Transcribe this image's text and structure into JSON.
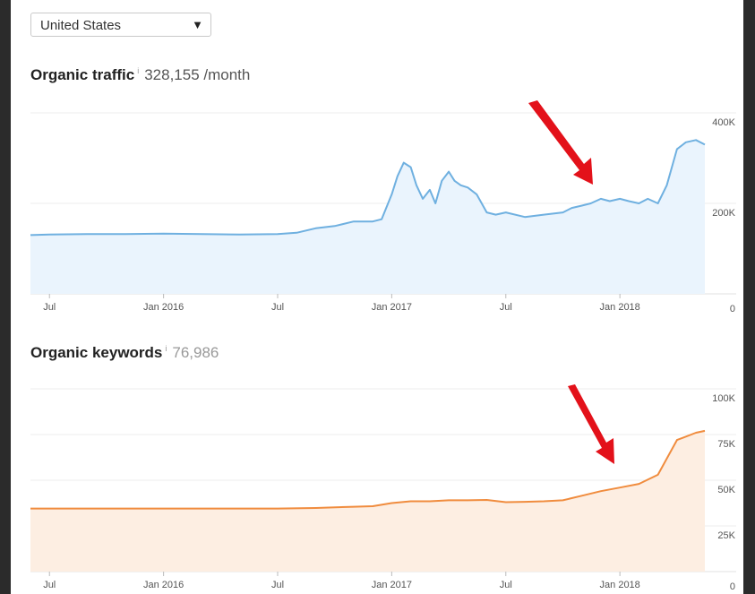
{
  "country_selector": {
    "value": "United States",
    "caret": "▼"
  },
  "traffic_section": {
    "title": "Organic traffic",
    "info": "i",
    "value": "328,155 /month"
  },
  "keywords_section": {
    "title": "Organic keywords",
    "info": "i",
    "value": "76,986"
  },
  "x_ticks": [
    "Jul",
    "Jan 2016",
    "Jul",
    "Jan 2017",
    "Jul",
    "Jan 2018"
  ],
  "colors": {
    "traffic_line": "#6fb0e0",
    "traffic_fill": "#eaf4fd",
    "keywords_line": "#f08c3e",
    "keywords_fill": "#fdeee2",
    "annotation_arrow": "#e3111a"
  },
  "chart_data": [
    {
      "type": "area",
      "title": "Organic traffic",
      "xlabel": "",
      "ylabel": "",
      "ylim": [
        0,
        400000
      ],
      "y_ticks": [
        "400K",
        "200K",
        "0"
      ],
      "x": [
        "2015-06",
        "2015-07",
        "2015-09",
        "2015-11",
        "2016-01",
        "2016-03",
        "2016-05",
        "2016-07",
        "2016-08",
        "2016-09",
        "2016-10",
        "2016-11",
        "2016-12",
        "2016-12-15",
        "2017-01",
        "2017-01-10",
        "2017-01-20",
        "2017-02",
        "2017-02-10",
        "2017-02-20",
        "2017-03",
        "2017-03-10",
        "2017-03-20",
        "2017-04",
        "2017-04-10",
        "2017-04-20",
        "2017-05",
        "2017-05-15",
        "2017-06",
        "2017-06-15",
        "2017-07",
        "2017-08",
        "2017-09",
        "2017-10",
        "2017-10-15",
        "2017-11",
        "2017-11-15",
        "2017-12",
        "2017-12-15",
        "2018-01",
        "2018-01-15",
        "2018-02",
        "2018-02-15",
        "2018-03",
        "2018-03-15",
        "2018-04",
        "2018-04-15",
        "2018-05",
        "2018-05-15"
      ],
      "series": [
        {
          "values": [
            130000,
            131000,
            132000,
            132000,
            133000,
            132000,
            131000,
            132000,
            135000,
            145000,
            150000,
            160000,
            160000,
            165000,
            220000,
            260000,
            290000,
            280000,
            240000,
            210000,
            230000,
            200000,
            250000,
            270000,
            250000,
            240000,
            235000,
            220000,
            180000,
            175000,
            180000,
            170000,
            175000,
            180000,
            190000,
            195000,
            200000,
            210000,
            205000,
            210000,
            205000,
            200000,
            210000,
            200000,
            240000,
            320000,
            335000,
            340000,
            330000
          ]
        }
      ]
    },
    {
      "type": "area",
      "title": "Organic keywords",
      "xlabel": "",
      "ylabel": "",
      "ylim": [
        0,
        100000
      ],
      "y_ticks": [
        "100K",
        "75K",
        "50K",
        "25K",
        "0"
      ],
      "x": [
        "2015-06",
        "2015-09",
        "2016-01",
        "2016-05",
        "2016-07",
        "2016-09",
        "2016-11",
        "2016-12",
        "2017-01",
        "2017-02",
        "2017-03",
        "2017-04",
        "2017-05",
        "2017-06",
        "2017-07",
        "2017-08",
        "2017-09",
        "2017-10",
        "2017-11",
        "2017-12",
        "2018-01",
        "2018-02",
        "2018-03",
        "2018-04",
        "2018-05",
        "2018-05-15"
      ],
      "series": [
        {
          "values": [
            34500,
            34500,
            34500,
            34500,
            34500,
            34800,
            35500,
            35800,
            37500,
            38500,
            38500,
            39000,
            39000,
            39200,
            38000,
            38200,
            38500,
            39000,
            41500,
            44000,
            46000,
            48000,
            53000,
            72000,
            76000,
            77000
          ]
        }
      ]
    }
  ]
}
